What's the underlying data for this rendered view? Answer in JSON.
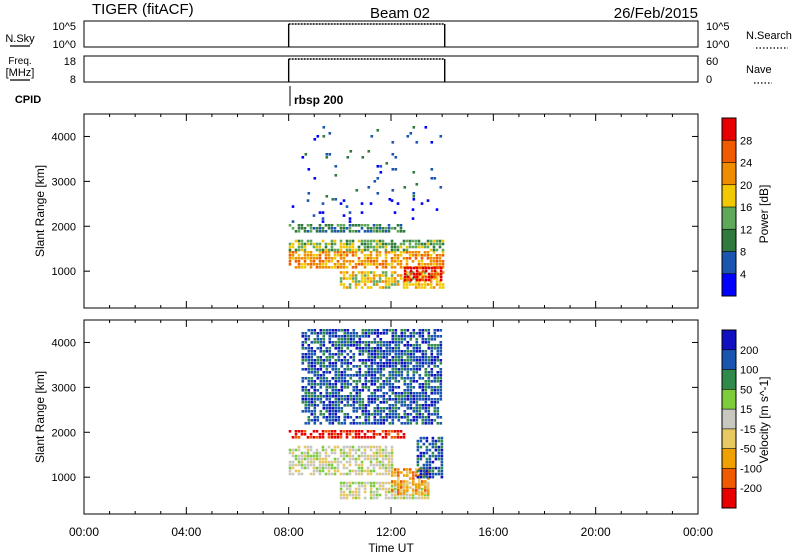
{
  "header": {
    "title": "TIGER (fitACF)",
    "beam": "Beam 02",
    "date": "26/Feb/2015"
  },
  "sky_panel": {
    "left_label": "N.Sky",
    "right_label": "N.Search",
    "left_ticks": [
      "10^5",
      "10^0"
    ],
    "right_ticks": [
      "10^5",
      "10^0"
    ]
  },
  "freq_panel": {
    "left_label_1": "Freq.",
    "left_label_2": "[MHz]",
    "right_label": "Nave",
    "left_ticks": [
      "18",
      "8"
    ],
    "right_ticks": [
      "60",
      "0"
    ]
  },
  "cpid": {
    "label": "CPID",
    "program": "rbsp 200"
  },
  "colors": {
    "power": [
      "#0000ff",
      "#1a56b0",
      "#2f7a3c",
      "#5fa85a",
      "#f2c800",
      "#f08c00",
      "#f05a00",
      "#e80000"
    ],
    "velocity": [
      "#e80000",
      "#f05a00",
      "#f0a000",
      "#e8c860",
      "#c8c8c0",
      "#7ccc3c",
      "#2f8a4c",
      "#1a56b0",
      "#1010c0"
    ]
  },
  "chart_data": [
    {
      "type": "heatmap",
      "name": "power",
      "xlabel": "",
      "ylabel": "Slant Range [km]",
      "yticks": [
        "1000",
        "2000",
        "3000",
        "4000"
      ],
      "colorbar_label": "Power [dB]",
      "colorbar_ticks": [
        "4",
        "8",
        "12",
        "16",
        "20",
        "24",
        "28"
      ],
      "xlim": [
        0,
        24
      ],
      "ylim": [
        180,
        4500
      ],
      "data_window_ut": [
        8.0,
        14.1
      ],
      "bands": [
        {
          "t": [
            8.0,
            14.0
          ],
          "r": [
            1050,
            1450
          ],
          "level": 5
        },
        {
          "t": [
            8.0,
            14.0
          ],
          "r": [
            1450,
            1700
          ],
          "level": 3
        },
        {
          "t": [
            8.0,
            12.5
          ],
          "r": [
            1850,
            2050
          ],
          "level": 2
        },
        {
          "t": [
            10.0,
            14.0
          ],
          "r": [
            600,
            1000
          ],
          "level": 4
        },
        {
          "t": [
            12.5,
            14.0
          ],
          "r": [
            800,
            1100
          ],
          "level": 7
        },
        {
          "t": [
            8.0,
            14.0
          ],
          "r": [
            2100,
            2600
          ],
          "level": 0
        },
        {
          "t": [
            8.5,
            14.0
          ],
          "r": [
            2600,
            4300
          ],
          "level": 1
        }
      ]
    },
    {
      "type": "heatmap",
      "name": "velocity",
      "xlabel": "Time UT",
      "ylabel": "Slant Range [km]",
      "yticks": [
        "1000",
        "2000",
        "3000",
        "4000"
      ],
      "xticks": [
        "00:00",
        "04:00",
        "08:00",
        "12:00",
        "16:00",
        "20:00",
        "00:00"
      ],
      "colorbar_label": "Velocity [m s^-1]",
      "colorbar_ticks": [
        "-200",
        "-100",
        "-50",
        "-15",
        "15",
        "50",
        "100",
        "200"
      ],
      "xlim": [
        0,
        24
      ],
      "ylim": [
        180,
        4500
      ],
      "data_window_ut": [
        8.0,
        14.1
      ],
      "bands": [
        {
          "t": [
            8.0,
            12.0
          ],
          "r": [
            1050,
            1700
          ],
          "level": 4
        },
        {
          "t": [
            8.0,
            12.5
          ],
          "r": [
            1850,
            2050
          ],
          "level": 0
        },
        {
          "t": [
            10.0,
            13.5
          ],
          "r": [
            550,
            900
          ],
          "level": 4
        },
        {
          "t": [
            12.0,
            13.5
          ],
          "r": [
            600,
            1200
          ],
          "level": 2
        },
        {
          "t": [
            13.0,
            14.0
          ],
          "r": [
            1000,
            1900
          ],
          "level": 7
        },
        {
          "t": [
            8.5,
            14.0
          ],
          "r": [
            2200,
            4300
          ],
          "level": 7
        }
      ]
    }
  ]
}
